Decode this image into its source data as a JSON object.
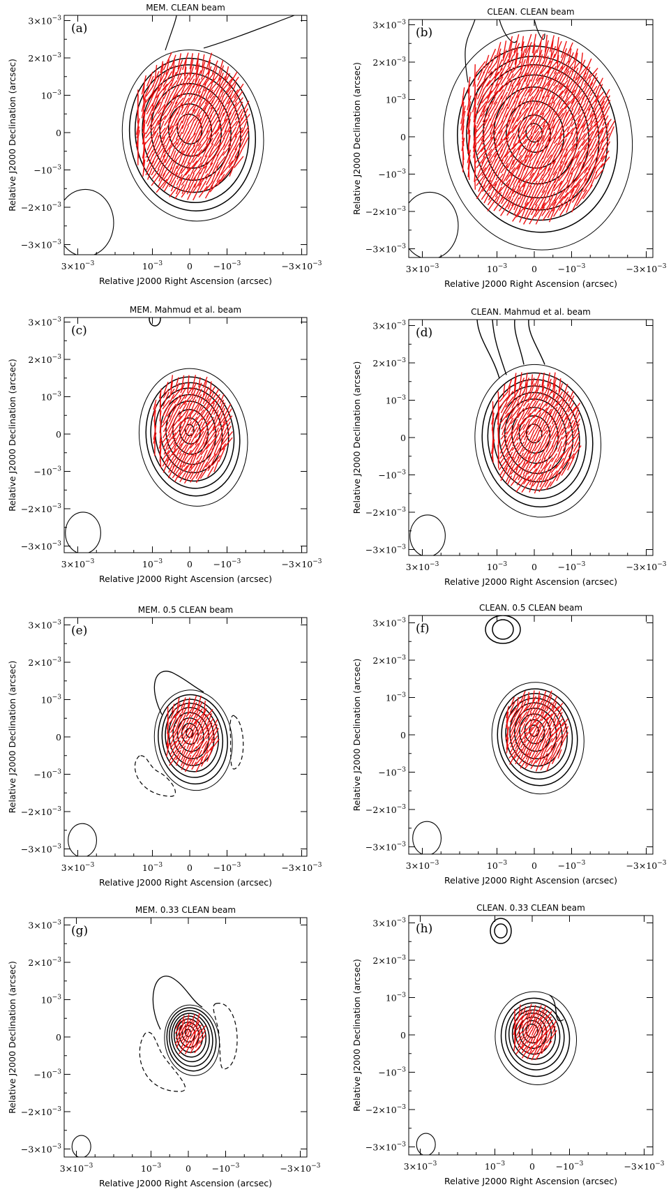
{
  "figure": {
    "panels": [
      {
        "id": "a",
        "letter": "(a)",
        "title": "MEM. CLEAN beam",
        "beam_size": 1.0,
        "major_axes_mas": [
          2.3,
          2.05,
          1.85,
          1.6,
          1.3,
          1.0,
          0.7,
          0.4
        ],
        "elongation": 1.22,
        "vectors": "dense",
        "negative_contours": "none",
        "extra_source": "none",
        "top_extension": "right"
      },
      {
        "id": "b",
        "letter": "(b)",
        "title": "CLEAN. CLEAN beam",
        "beam_size": 1.0,
        "major_axes_mas": [
          2.95,
          2.5,
          2.2,
          1.95,
          1.65,
          1.3,
          0.9,
          0.5,
          0.25
        ],
        "elongation": 1.17,
        "vectors": "dense",
        "negative_contours": "none",
        "extra_source": "none",
        "top_extension": "double"
      },
      {
        "id": "c",
        "letter": "(c)",
        "title": "MEM. Mahmud et al. beam",
        "beam_size": 0.62,
        "major_axes_mas": [
          1.85,
          1.6,
          1.42,
          1.25,
          1.05,
          0.85,
          0.6,
          0.35,
          0.15
        ],
        "elongation": 1.28,
        "vectors": "medium",
        "negative_contours": "none",
        "extra_source": "small-top",
        "top_extension": "none"
      },
      {
        "id": "d",
        "letter": "(d)",
        "title": "CLEAN. Mahmud et al. beam",
        "beam_size": 0.62,
        "major_axes_mas": [
          2.05,
          1.8,
          1.6,
          1.4,
          1.2,
          1.0,
          0.75,
          0.5,
          0.25
        ],
        "elongation": 1.22,
        "vectors": "medium",
        "negative_contours": "none",
        "extra_source": "none",
        "top_extension": "double-narrow"
      },
      {
        "id": "e",
        "letter": "(e)",
        "title": "MEM. 0.5 CLEAN beam",
        "beam_size": 0.5,
        "major_axes_mas": [
          1.35,
          1.2,
          1.05,
          0.92,
          0.78,
          0.62,
          0.45,
          0.28,
          0.12
        ],
        "elongation": 1.3,
        "vectors": "medium-small",
        "negative_contours": "sides",
        "extra_source": "none",
        "top_extension": "knob"
      },
      {
        "id": "f",
        "letter": "(f)",
        "title": "CLEAN. 0.5 CLEAN beam",
        "beam_size": 0.5,
        "major_axes_mas": [
          1.5,
          1.3,
          1.15,
          1.0,
          0.85,
          0.68,
          0.5,
          0.32,
          0.15
        ],
        "elongation": 1.22,
        "vectors": "medium-small",
        "negative_contours": "none",
        "extra_source": "large-top",
        "top_extension": "none"
      },
      {
        "id": "g",
        "letter": "(g)",
        "title": "MEM. 0.33 CLEAN beam",
        "beam_size": 0.33,
        "major_axes_mas": [
          0.95,
          0.85,
          0.75,
          0.65,
          0.55,
          0.45,
          0.34,
          0.22,
          0.1
        ],
        "elongation": 1.3,
        "vectors": "small",
        "negative_contours": "wide-sides",
        "extra_source": "none",
        "top_extension": "knob-high"
      },
      {
        "id": "h",
        "letter": "(h)",
        "title": "CLEAN. 0.33 CLEAN beam",
        "beam_size": 0.33,
        "major_axes_mas": [
          1.25,
          1.05,
          0.9,
          0.78,
          0.66,
          0.55,
          0.42,
          0.3,
          0.18
        ],
        "elongation": 1.15,
        "vectors": "small",
        "negative_contours": "none",
        "extra_source": "small-top-high",
        "top_extension": "shoulder"
      }
    ],
    "xlabel": "Relative J2000 Right Ascension (arcsec)",
    "ylabel": "Relative J2000 Declination (arcsec)",
    "x_ticks": [
      {
        "v": 3,
        "base": "3×10",
        "exp": "−3"
      },
      {
        "v": 1,
        "base": "10",
        "exp": "−3"
      },
      {
        "v": 0,
        "base": "0",
        "exp": ""
      },
      {
        "v": -1,
        "base": "−10",
        "exp": "−3"
      },
      {
        "v": -3,
        "base": "−3×10",
        "exp": "−3"
      }
    ],
    "y_ticks": [
      {
        "v": 3,
        "base": "3×10",
        "exp": "−3"
      },
      {
        "v": 2,
        "base": "2×10",
        "exp": "−3"
      },
      {
        "v": 1,
        "base": "10",
        "exp": "−3"
      },
      {
        "v": 0,
        "base": "0",
        "exp": ""
      },
      {
        "v": -1,
        "base": "−10",
        "exp": "−3"
      },
      {
        "v": -2,
        "base": "−2×10",
        "exp": "−3"
      },
      {
        "v": -3,
        "base": "−3×10",
        "exp": "−3"
      }
    ],
    "colors": {
      "contour": "#000000",
      "vector": "#ee1111",
      "background": "#ffffff"
    },
    "axis_range_mas": {
      "ra": [
        3.3,
        -3.2
      ],
      "dec": [
        -3.3,
        3.0
      ]
    }
  }
}
